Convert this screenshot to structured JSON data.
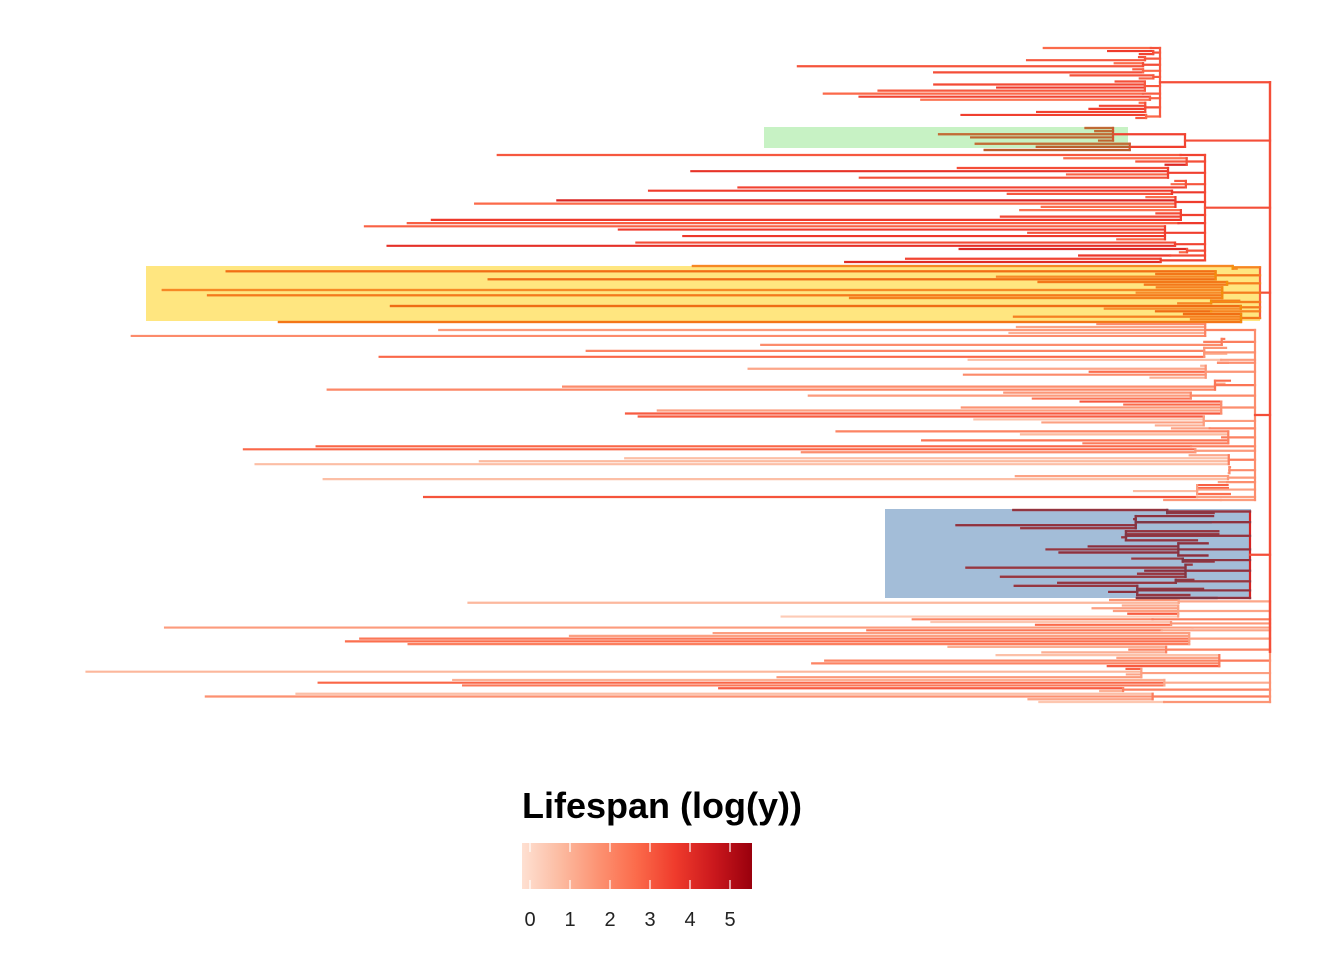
{
  "chart_data": {
    "type": "phylogenetic-tree",
    "orientation": "root-right, tips-left",
    "title": "",
    "xlabel": "",
    "ylabel": "",
    "color_variable": "Lifespan (log(y))",
    "legend": {
      "title": "Lifespan (log(y))",
      "ticks": [
        "0",
        "1",
        "2",
        "3",
        "4",
        "5"
      ],
      "range": [
        0,
        5.35
      ],
      "gradient_colors": [
        "#fee0d2",
        "#fcbba1",
        "#fc9272",
        "#fb6a4a",
        "#ef3b2c",
        "#cb181d",
        "#99000d"
      ],
      "placement": "bottom"
    },
    "highlighted_clades": [
      {
        "color": "#c7f2c4",
        "tips": 4
      },
      {
        "color": "#ffe680",
        "tips": 14
      },
      {
        "color": "#a3bdd8",
        "tips": 22
      }
    ],
    "tip_count": 236
  }
}
